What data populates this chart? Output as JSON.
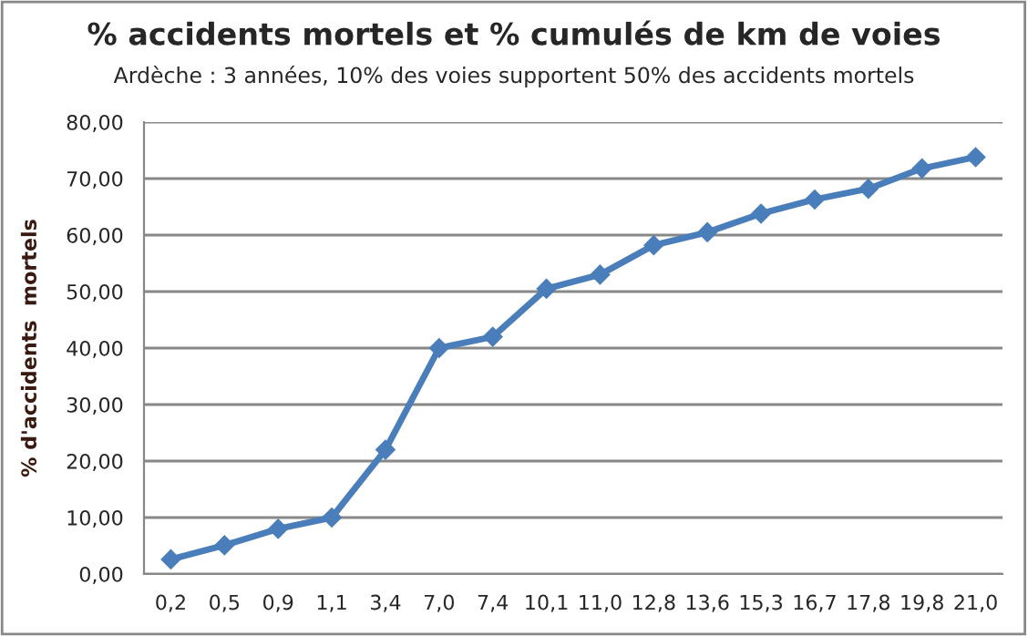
{
  "chart_data": {
    "type": "line",
    "title": "% accidents mortels et % cumulés de km de voies",
    "subtitle": "Ardèche : 3 années, 10% des voies supportent 50% des accidents mortels",
    "ylabel": "% d'accidents  mortels",
    "categories": [
      "0,2",
      "0,5",
      "0,9",
      "1,1",
      "3,4",
      "7,0",
      "7,4",
      "10,1",
      "11,0",
      "12,8",
      "13,6",
      "15,3",
      "16,7",
      "17,8",
      "19,8",
      "21,0"
    ],
    "series": [
      {
        "color": "#4a7ebb",
        "values": [
          2.6,
          5.1,
          8.0,
          10.0,
          22.0,
          40.0,
          42.0,
          50.5,
          53.0,
          58.2,
          60.5,
          63.8,
          66.3,
          68.2,
          71.8,
          73.8
        ]
      }
    ],
    "ylim": [
      0,
      80
    ],
    "yticks": [
      {
        "value": 0,
        "label": "0,00"
      },
      {
        "value": 10,
        "label": "10,00"
      },
      {
        "value": 20,
        "label": "20,00"
      },
      {
        "value": 30,
        "label": "30,00"
      },
      {
        "value": 40,
        "label": "40,00"
      },
      {
        "value": 50,
        "label": "50,00"
      },
      {
        "value": 60,
        "label": "60,00"
      },
      {
        "value": 70,
        "label": "70,00"
      },
      {
        "value": 80,
        "label": "80,00"
      }
    ],
    "grid": "y",
    "marker": "diamond",
    "line_style": "solid",
    "legend": false
  }
}
